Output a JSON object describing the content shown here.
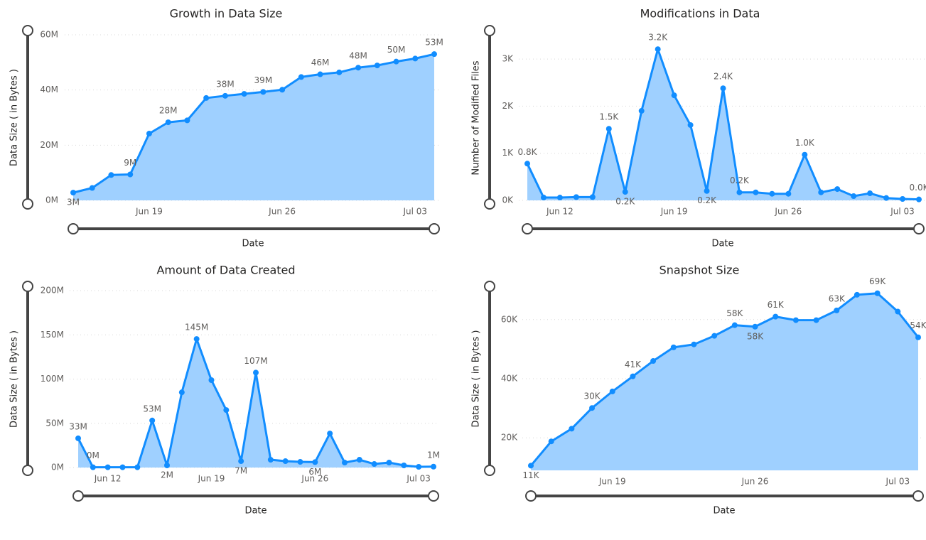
{
  "chart_data": [
    {
      "type": "area",
      "title": "Growth in Data Size",
      "x_label": "Date",
      "y_label": "Data Size ( in Bytes )",
      "categories": [
        null,
        null,
        null,
        null,
        "Jun 19",
        null,
        null,
        null,
        null,
        null,
        null,
        "Jun 26",
        null,
        null,
        null,
        null,
        null,
        null,
        "Jul 03",
        null
      ],
      "values": [
        2.8,
        4.5,
        9.2,
        9.4,
        24.2,
        28.3,
        29.0,
        37.1,
        37.9,
        38.6,
        39.3,
        40.1,
        44.7,
        45.7,
        46.4,
        48.1,
        48.9,
        50.3,
        51.4,
        53.0
      ],
      "value_labels": [
        "3M",
        null,
        null,
        "9M",
        null,
        "28M",
        null,
        null,
        "38M",
        null,
        "39M",
        null,
        null,
        "46M",
        null,
        "48M",
        null,
        "50M",
        null,
        "53M"
      ],
      "color": "#118dff",
      "area_color": "#9fd0ff",
      "ylim": [
        0,
        60
      ],
      "yticks": [
        {
          "value": 0,
          "label": "0M"
        },
        {
          "value": 20,
          "label": "20M"
        },
        {
          "value": 40,
          "label": "40M"
        },
        {
          "value": 60,
          "label": "60M"
        }
      ],
      "grid": true
    },
    {
      "type": "area",
      "title": "Modifications in Data",
      "x_label": "Date",
      "y_label": "Number of Modified Files",
      "categories": [
        null,
        null,
        "Jun 12",
        null,
        null,
        null,
        null,
        null,
        null,
        "Jun 19",
        null,
        null,
        null,
        null,
        null,
        null,
        "Jun 26",
        null,
        null,
        null,
        null,
        null,
        null,
        "Jul 03",
        null
      ],
      "values": [
        0.78,
        0.06,
        0.06,
        0.07,
        0.07,
        1.52,
        0.18,
        1.9,
        3.21,
        2.23,
        1.6,
        0.2,
        2.38,
        0.17,
        0.17,
        0.14,
        0.14,
        0.97,
        0.17,
        0.24,
        0.09,
        0.15,
        0.05,
        0.03,
        0.02
      ],
      "value_labels": [
        "0.8K",
        null,
        null,
        null,
        null,
        "1.5K",
        "0.2K",
        null,
        "3.2K",
        null,
        null,
        "0.2K",
        "2.4K",
        "0.2K",
        null,
        null,
        null,
        "1.0K",
        null,
        null,
        null,
        null,
        null,
        null,
        "0.0K"
      ],
      "color": "#118dff",
      "area_color": "#9fd0ff",
      "ylim": [
        0,
        3.5
      ],
      "yticks": [
        {
          "value": 0,
          "label": "0K"
        },
        {
          "value": 1,
          "label": "1K"
        },
        {
          "value": 2,
          "label": "2K"
        },
        {
          "value": 3,
          "label": "3K"
        }
      ],
      "grid": true
    },
    {
      "type": "area",
      "title": "Amount of Data Created",
      "x_label": "Date",
      "y_label": "Data Size ( in Bytes )",
      "categories": [
        null,
        null,
        "Jun 12",
        null,
        null,
        null,
        null,
        null,
        null,
        "Jun 19",
        null,
        null,
        null,
        null,
        null,
        null,
        "Jun 26",
        null,
        null,
        null,
        null,
        null,
        null,
        "Jul 03",
        null
      ],
      "values": [
        33,
        0.3,
        0.3,
        0.3,
        0.3,
        53.2,
        2.4,
        85,
        145.3,
        98.8,
        65,
        7.2,
        107.3,
        8.8,
        7.2,
        6.4,
        6.1,
        38.5,
        5.6,
        8.8,
        4,
        5.6,
        2.4,
        0.8,
        1.0
      ],
      "value_labels": [
        "33M",
        "0M",
        null,
        null,
        null,
        "53M",
        "2M",
        null,
        "145M",
        null,
        null,
        "7M",
        "107M",
        null,
        null,
        null,
        "6M",
        null,
        null,
        null,
        null,
        null,
        null,
        null,
        "1M"
      ],
      "color": "#118dff",
      "area_color": "#9fd0ff",
      "ylim": [
        0,
        200
      ],
      "yticks": [
        {
          "value": 0,
          "label": "0M"
        },
        {
          "value": 50,
          "label": "50M"
        },
        {
          "value": 100,
          "label": "100M"
        },
        {
          "value": 150,
          "label": "150M"
        },
        {
          "value": 200,
          "label": "200M"
        }
      ],
      "grid": true
    },
    {
      "type": "area",
      "title": "Snapshot Size",
      "x_label": "Date",
      "y_label": "Data Size ( in Bytes )",
      "categories": [
        null,
        null,
        null,
        null,
        "Jun 19",
        null,
        null,
        null,
        null,
        null,
        null,
        "Jun 26",
        null,
        null,
        null,
        null,
        null,
        null,
        "Jul 03",
        null
      ],
      "values": [
        10.6,
        18.8,
        23.1,
        30.1,
        35.7,
        40.8,
        46,
        50.6,
        51.6,
        54.5,
        58.1,
        57.6,
        61,
        59.8,
        59.8,
        63.1,
        68.4,
        68.9,
        62.7,
        54
      ],
      "value_labels": [
        "11K",
        null,
        null,
        "30K",
        null,
        "41K",
        null,
        null,
        null,
        null,
        "58K",
        "58K",
        "61K",
        null,
        null,
        "63K",
        null,
        "69K",
        null,
        "54K"
      ],
      "color": "#118dff",
      "area_color": "#9fd0ff",
      "ylim": [
        9,
        71
      ],
      "yticks": [
        {
          "value": 20,
          "label": "20K"
        },
        {
          "value": 40,
          "label": "40K"
        },
        {
          "value": 60,
          "label": "60K"
        }
      ],
      "grid": true
    }
  ]
}
